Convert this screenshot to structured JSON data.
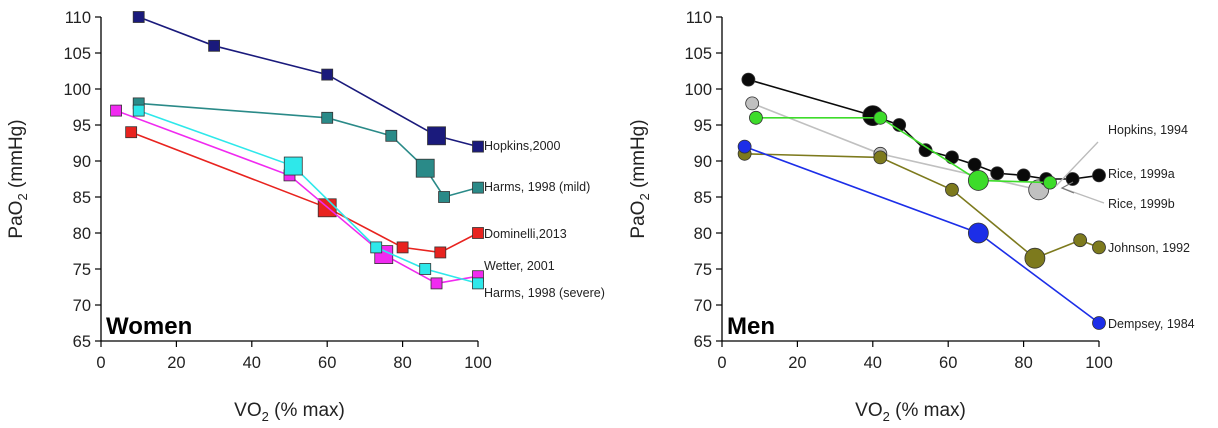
{
  "chart_data": [
    {
      "type": "scatter",
      "panel_label": "Women",
      "xlabel": {
        "main": "VO",
        "sub": "2",
        "rest": " (% max)"
      },
      "ylabel": {
        "main": "PaO",
        "sub": "2",
        "rest": " (mmHg)"
      },
      "xlim": [
        0,
        100
      ],
      "ylim": [
        65,
        110
      ],
      "xticks": [
        0,
        20,
        40,
        60,
        80,
        100
      ],
      "yticks": [
        65,
        70,
        75,
        80,
        85,
        90,
        95,
        100,
        105,
        110
      ],
      "marker": "square",
      "series": [
        {
          "name": "Hopkins,2000",
          "color": "#1a1a7c",
          "points": [
            {
              "x": 10,
              "y": 110
            },
            {
              "x": 30,
              "y": 106
            },
            {
              "x": 60,
              "y": 102
            },
            {
              "x": 89,
              "y": 93.5,
              "large": true
            },
            {
              "x": 100,
              "y": 92
            }
          ]
        },
        {
          "name": "Harms, 1998 (mild)",
          "color": "#2a8a88",
          "points": [
            {
              "x": 10,
              "y": 98
            },
            {
              "x": 60,
              "y": 96
            },
            {
              "x": 77,
              "y": 93.5
            },
            {
              "x": 86,
              "y": 89,
              "large": true
            },
            {
              "x": 91,
              "y": 85
            },
            {
              "x": 100,
              "y": 86.3
            }
          ]
        },
        {
          "name": "Dominelli,2013",
          "color": "#e8231f",
          "points": [
            {
              "x": 8,
              "y": 94
            },
            {
              "x": 60,
              "y": 83.5,
              "large": true
            },
            {
              "x": 80,
              "y": 78
            },
            {
              "x": 90,
              "y": 77.3
            },
            {
              "x": 100,
              "y": 80
            }
          ]
        },
        {
          "name": "Wetter, 2001",
          "color": "#f02af0",
          "points": [
            {
              "x": 4,
              "y": 97
            },
            {
              "x": 50,
              "y": 88
            },
            {
              "x": 75,
              "y": 77,
              "large": true
            },
            {
              "x": 89,
              "y": 73
            },
            {
              "x": 100,
              "y": 74
            }
          ]
        },
        {
          "name": "Harms, 1998 (severe)",
          "color": "#2ee8ea",
          "points": [
            {
              "x": 10,
              "y": 97
            },
            {
              "x": 51,
              "y": 89.3,
              "large": true
            },
            {
              "x": 73,
              "y": 78
            },
            {
              "x": 86,
              "y": 75
            },
            {
              "x": 100,
              "y": 73
            }
          ]
        }
      ]
    },
    {
      "type": "scatter",
      "panel_label": "Men",
      "xlabel": {
        "main": "VO",
        "sub": "2",
        "rest": " (% max)"
      },
      "ylabel": {
        "main": "PaO",
        "sub": "2",
        "rest": " (mmHg)"
      },
      "xlim": [
        0,
        100
      ],
      "ylim": [
        65,
        110
      ],
      "xticks": [
        0,
        20,
        40,
        60,
        80,
        100
      ],
      "yticks": [
        65,
        70,
        75,
        80,
        85,
        90,
        95,
        100,
        105,
        110
      ],
      "marker": "circle",
      "series": [
        {
          "name": "Hopkins, 1994",
          "color": "#c0c0c0",
          "points": [
            {
              "x": 8,
              "y": 98
            },
            {
              "x": 42,
              "y": 91
            },
            {
              "x": 84,
              "y": 86,
              "large": true
            }
          ]
        },
        {
          "name": "Rice, 1999a",
          "color": "#0a0a0a",
          "points": [
            {
              "x": 7,
              "y": 101.3
            },
            {
              "x": 40,
              "y": 96.3,
              "large": true
            },
            {
              "x": 47,
              "y": 95
            },
            {
              "x": 54,
              "y": 91.5
            },
            {
              "x": 61,
              "y": 90.5
            },
            {
              "x": 67,
              "y": 89.5
            },
            {
              "x": 73,
              "y": 88.3
            },
            {
              "x": 80,
              "y": 88
            },
            {
              "x": 86,
              "y": 87.5
            },
            {
              "x": 93,
              "y": 87.5
            },
            {
              "x": 100,
              "y": 88
            }
          ]
        },
        {
          "name": "Rice, 1999b",
          "color": "#3ddc2a",
          "points": [
            {
              "x": 9,
              "y": 96
            },
            {
              "x": 42,
              "y": 96
            },
            {
              "x": 68,
              "y": 87.3,
              "large": true
            },
            {
              "x": 87,
              "y": 87
            }
          ]
        },
        {
          "name": "Johnson, 1992",
          "color": "#7d7a1d",
          "points": [
            {
              "x": 6,
              "y": 91
            },
            {
              "x": 42,
              "y": 90.5
            },
            {
              "x": 61,
              "y": 86
            },
            {
              "x": 83,
              "y": 76.5,
              "large": true
            },
            {
              "x": 95,
              "y": 79
            },
            {
              "x": 100,
              "y": 78
            }
          ]
        },
        {
          "name": "Dempsey, 1984",
          "color": "#1c2ee8",
          "points": [
            {
              "x": 6,
              "y": 92
            },
            {
              "x": 68,
              "y": 80,
              "large": true
            },
            {
              "x": 100,
              "y": 67.5
            }
          ]
        }
      ]
    }
  ]
}
